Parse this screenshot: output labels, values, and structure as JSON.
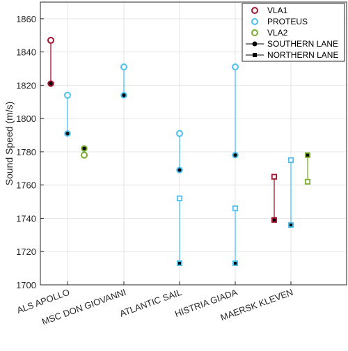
{
  "colors": {
    "VLA1": "#a2142f",
    "PROTEUS": "#4dbeee",
    "VLA2": "#77ac30",
    "lane_marker": "#000000",
    "axis": "#262626",
    "grid": "#e6e6e6"
  },
  "chart_data": {
    "type": "scatter",
    "title": "",
    "xlabel": "",
    "ylabel": "Sound Speed (m/s)",
    "ylim": [
      1700,
      1870
    ],
    "yticks": [
      1700,
      1720,
      1740,
      1760,
      1780,
      1800,
      1820,
      1840,
      1860
    ],
    "categories": [
      "ALS APOLLO",
      "MSC DON GIOVANNI",
      "ATLANTIC SAIL",
      "HISTRIA GIADA",
      "MAERSK KLEVEN"
    ],
    "grid": true,
    "legend_position": "top-right",
    "legend": [
      {
        "label": "VLA1",
        "kind": "series",
        "series": "VLA1"
      },
      {
        "label": "PROTEUS",
        "kind": "series",
        "series": "PROTEUS"
      },
      {
        "label": "VLA2",
        "kind": "series",
        "series": "VLA2"
      },
      {
        "label": "SOUTHERN LANE",
        "kind": "lane",
        "marker": "circle"
      },
      {
        "label": "NORTHERN LANE",
        "kind": "lane",
        "marker": "square"
      }
    ],
    "points": [
      {
        "vessel": "ALS APOLLO",
        "series": "VLA1",
        "lane": "SOUTHERN LANE",
        "offset": -1,
        "values": [
          1847,
          1821
        ]
      },
      {
        "vessel": "ALS APOLLO",
        "series": "PROTEUS",
        "lane": "SOUTHERN LANE",
        "offset": 0,
        "values": [
          1814,
          1791
        ]
      },
      {
        "vessel": "ALS APOLLO",
        "series": "VLA2",
        "lane": "SOUTHERN LANE",
        "offset": 1,
        "values": [
          1778,
          1782
        ]
      },
      {
        "vessel": "MSC DON GIOVANNI",
        "series": "PROTEUS",
        "lane": "SOUTHERN LANE",
        "offset": 0,
        "values": [
          1831,
          1814
        ]
      },
      {
        "vessel": "ATLANTIC SAIL",
        "series": "PROTEUS",
        "lane": "SOUTHERN LANE",
        "offset": 0,
        "values": [
          1791,
          1769
        ]
      },
      {
        "vessel": "ATLANTIC SAIL",
        "series": "PROTEUS",
        "lane": "NORTHERN LANE",
        "offset": 0,
        "values": [
          1752,
          1713
        ]
      },
      {
        "vessel": "HISTRIA GIADA",
        "series": "PROTEUS",
        "lane": "SOUTHERN LANE",
        "offset": 0,
        "values": [
          1831,
          1778
        ]
      },
      {
        "vessel": "HISTRIA GIADA",
        "series": "PROTEUS",
        "lane": "NORTHERN LANE",
        "offset": 0,
        "values": [
          1746,
          1713
        ]
      },
      {
        "vessel": "MAERSK KLEVEN",
        "series": "VLA1",
        "lane": "NORTHERN LANE",
        "offset": -1,
        "values": [
          1765,
          1739
        ]
      },
      {
        "vessel": "MAERSK KLEVEN",
        "series": "PROTEUS",
        "lane": "NORTHERN LANE",
        "offset": 0,
        "values": [
          1775,
          1736
        ]
      },
      {
        "vessel": "MAERSK KLEVEN",
        "series": "VLA2",
        "lane": "NORTHERN LANE",
        "offset": 1,
        "values": [
          1762,
          1778
        ]
      }
    ]
  }
}
